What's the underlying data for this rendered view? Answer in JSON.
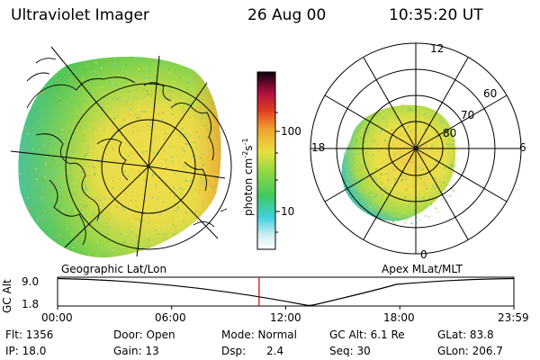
{
  "header": {
    "title": "Ultraviolet Imager",
    "date": "26 Aug 00",
    "time": "10:35:20 UT"
  },
  "geo_map": {
    "label": "Geographic Lat/Lon"
  },
  "polar_plot": {
    "label": "Apex MLat/MLT",
    "mlt_labels": [
      "12",
      "18",
      "6",
      "0"
    ],
    "lat_labels": [
      "60",
      "70",
      "80"
    ]
  },
  "colorbar": {
    "unit_label": "photon cm",
    "unit_exp1": "-2",
    "unit_mid": "s",
    "unit_exp2": "-1",
    "ticks": [
      "100",
      "10"
    ]
  },
  "altitude_plot": {
    "ylabel": "GC Alt",
    "yticks": [
      "9.0",
      "1.8"
    ],
    "xticks": [
      "00:00",
      "06:00",
      "12:00",
      "18:00",
      "23:59"
    ],
    "current_time_hours": 10.59,
    "marker_color": "#cc0000"
  },
  "info": {
    "flt": "Flt: 1356",
    "ip": "IP: 18.0",
    "door": "Door: Open",
    "gain": "Gain: 13",
    "mode": "Mode: Normal",
    "dsp_label": "Dsp:",
    "dsp_value": "2.4",
    "gc_alt": "GC Alt: 6.1 Re",
    "seq": "Seq: 30",
    "glat": "GLat:  83.8",
    "glon": "GLon: 206.7"
  },
  "colors": {
    "aurora_green": "#4fc84f",
    "aurora_yellow": "#e8e24a",
    "aurora_orange": "#f0a030",
    "aurora_cyan": "#3ecfe0"
  }
}
